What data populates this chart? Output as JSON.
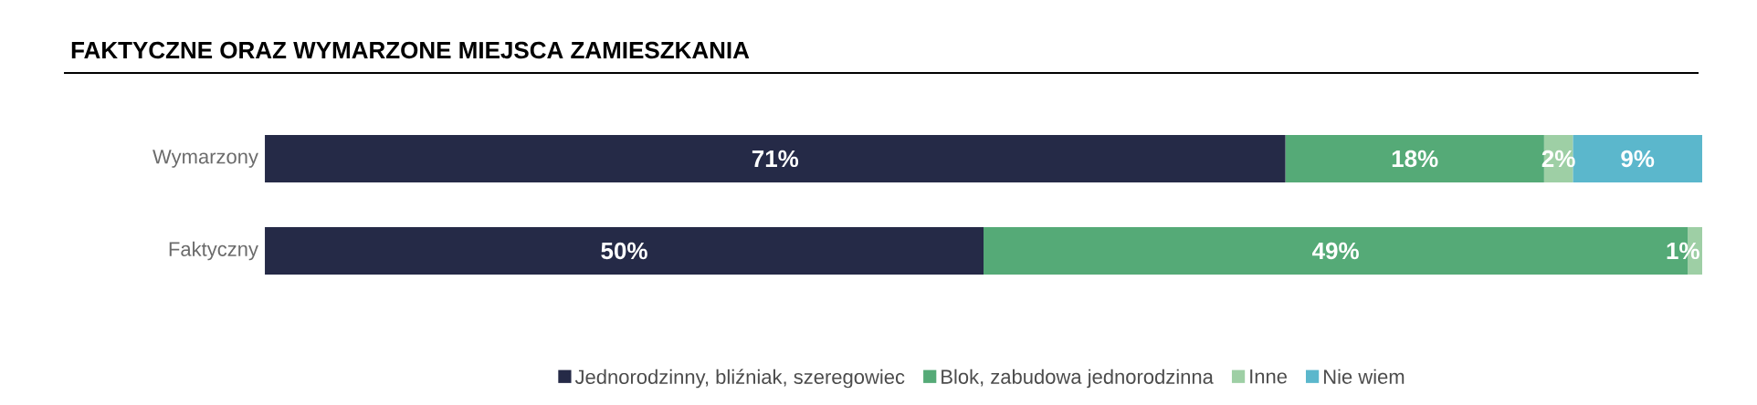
{
  "chart_data": {
    "type": "bar",
    "orientation": "horizontal",
    "stacked": true,
    "title": "FAKTYCZNE ORAZ WYMARZONE MIEJSCA ZAMIESZKANIA",
    "categories": [
      "Wymarzony",
      "Faktyczny"
    ],
    "xlim": [
      0,
      100
    ],
    "tick_labels": "y",
    "legend": "bottom",
    "grid": false,
    "series": [
      {
        "name": "Jednorodzinny, bliźniak, szeregowiec",
        "color": "#252a47",
        "values": [
          71,
          50
        ],
        "value_labels": [
          "71%",
          "50%"
        ]
      },
      {
        "name": "Blok, zabudowa jednorodzinna",
        "color": "#55aa77",
        "values": [
          18,
          49
        ],
        "value_labels": [
          "18%",
          "49%"
        ]
      },
      {
        "name": "Inne",
        "color": "#9ecfa5",
        "values": [
          2,
          1
        ],
        "value_labels": [
          "2%",
          "1%"
        ]
      },
      {
        "name": "Nie wiem",
        "color": "#5bb7cc",
        "values": [
          9,
          null
        ],
        "value_labels": [
          "9%",
          null
        ]
      }
    ]
  }
}
